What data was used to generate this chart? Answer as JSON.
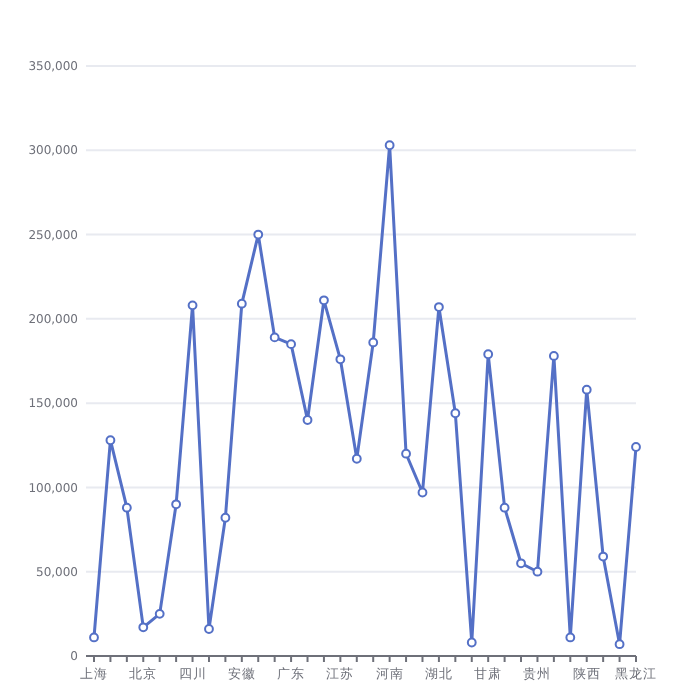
{
  "chart_data": {
    "type": "line",
    "categories": [
      "上海",
      null,
      null,
      "北京",
      null,
      null,
      "四川",
      null,
      null,
      "安徽",
      null,
      null,
      "广东",
      null,
      null,
      "江苏",
      null,
      null,
      "河南",
      null,
      null,
      "湖北",
      null,
      null,
      "甘肃",
      null,
      null,
      "贵州",
      null,
      null,
      "陕西",
      null,
      null,
      "黑龙江"
    ],
    "series": [
      {
        "color": "#5470c6",
        "values": [
          11000,
          128000,
          88000,
          17000,
          25000,
          90000,
          208000,
          16000,
          82000,
          209000,
          250000,
          189000,
          185000,
          140000,
          211000,
          176000,
          117000,
          186000,
          303000,
          120000,
          97000,
          207000,
          144000,
          8000,
          179000,
          88000,
          55000,
          50000,
          178000,
          11000,
          158000,
          59000,
          7000,
          124000
        ]
      }
    ],
    "ylim": [
      0,
      350000
    ],
    "yticks": [
      {
        "value": 0,
        "label": "0"
      },
      {
        "value": 50000,
        "label": "50,000"
      },
      {
        "value": 100000,
        "label": "100,000"
      },
      {
        "value": 150000,
        "label": "150,000"
      },
      {
        "value": 200000,
        "label": "200,000"
      },
      {
        "value": 250000,
        "label": "250,000"
      },
      {
        "value": 300000,
        "label": "300,000"
      },
      {
        "value": 350000,
        "label": "350,000"
      }
    ],
    "grid": "y",
    "marker": "circle",
    "line_style": "solid"
  }
}
